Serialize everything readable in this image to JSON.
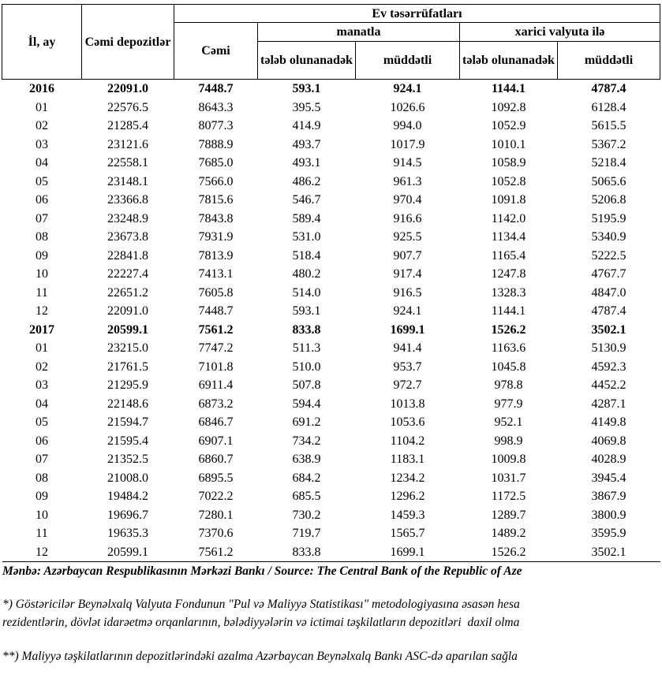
{
  "header": {
    "period": "İl, ay",
    "total_deposits": "Cəmi depozitlər",
    "households": "Ev təsərrüfatları",
    "total": "Cəmi",
    "manat": "manatla",
    "foreign": "xarici valyuta ilə",
    "demand": "tələb olunanadək",
    "term": "müddətli"
  },
  "rows": [
    {
      "label": "2016",
      "bold": true,
      "values": [
        "22091.0",
        "7448.7",
        "593.1",
        "924.1",
        "1144.1",
        "4787.4"
      ]
    },
    {
      "label": "01",
      "values": [
        "22576.5",
        "8643.3",
        "395.5",
        "1026.6",
        "1092.8",
        "6128.4"
      ]
    },
    {
      "label": "02",
      "values": [
        "21285.4",
        "8077.3",
        "414.9",
        "994.0",
        "1052.9",
        "5615.5"
      ]
    },
    {
      "label": "03",
      "values": [
        "23121.6",
        "7888.9",
        "493.7",
        "1017.9",
        "1010.1",
        "5367.2"
      ]
    },
    {
      "label": "04",
      "values": [
        "22558.1",
        "7685.0",
        "493.1",
        "914.5",
        "1058.9",
        "5218.4"
      ]
    },
    {
      "label": "05",
      "values": [
        "23148.1",
        "7566.0",
        "486.2",
        "961.3",
        "1052.8",
        "5065.6"
      ]
    },
    {
      "label": "06",
      "values": [
        "23366.8",
        "7815.6",
        "546.7",
        "970.4",
        "1091.8",
        "5206.8"
      ]
    },
    {
      "label": "07",
      "values": [
        "23248.9",
        "7843.8",
        "589.4",
        "916.6",
        "1142.0",
        "5195.9"
      ]
    },
    {
      "label": "08",
      "values": [
        "23673.8",
        "7931.9",
        "531.0",
        "925.5",
        "1134.4",
        "5340.9"
      ]
    },
    {
      "label": "09",
      "values": [
        "22841.8",
        "7813.9",
        "518.4",
        "907.7",
        "1165.4",
        "5222.5"
      ]
    },
    {
      "label": "10",
      "values": [
        "22227.4",
        "7413.1",
        "480.2",
        "917.4",
        "1247.8",
        "4767.7"
      ]
    },
    {
      "label": "11",
      "values": [
        "22651.2",
        "7605.8",
        "514.0",
        "916.5",
        "1328.3",
        "4847.0"
      ]
    },
    {
      "label": "12",
      "values": [
        "22091.0",
        "7448.7",
        "593.1",
        "924.1",
        "1144.1",
        "4787.4"
      ]
    },
    {
      "label": "2017",
      "bold": true,
      "values": [
        "20599.1",
        "7561.2",
        "833.8",
        "1699.1",
        "1526.2",
        "3502.1"
      ]
    },
    {
      "label": "01",
      "values": [
        "23215.0",
        "7747.2",
        "511.3",
        "941.4",
        "1163.6",
        "5130.9"
      ]
    },
    {
      "label": "02",
      "values": [
        "21761.5",
        "7101.8",
        "510.0",
        "953.7",
        "1045.8",
        "4592.3"
      ]
    },
    {
      "label": "03",
      "values": [
        "21295.9",
        "6911.4",
        "507.8",
        "972.7",
        "978.8",
        "4452.2"
      ]
    },
    {
      "label": "04",
      "values": [
        "22148.6",
        "6873.2",
        "594.4",
        "1013.8",
        "977.9",
        "4287.1"
      ]
    },
    {
      "label": "05",
      "values": [
        "21594.7",
        "6846.7",
        "691.2",
        "1053.6",
        "952.1",
        "4149.8"
      ]
    },
    {
      "label": "06",
      "values": [
        "21595.4",
        "6907.1",
        "734.2",
        "1104.2",
        "998.9",
        "4069.8"
      ]
    },
    {
      "label": "07",
      "values": [
        "21352.5",
        "6860.7",
        "638.9",
        "1183.1",
        "1009.8",
        "4028.9"
      ]
    },
    {
      "label": "08",
      "values": [
        "21008.0",
        "6895.5",
        "684.2",
        "1234.2",
        "1031.7",
        "3945.4"
      ]
    },
    {
      "label": "09",
      "values": [
        "19484.2",
        "7022.2",
        "685.5",
        "1296.2",
        "1172.5",
        "3867.9"
      ]
    },
    {
      "label": "10",
      "values": [
        "19696.7",
        "7280.1",
        "730.2",
        "1459.3",
        "1289.7",
        "3800.9"
      ]
    },
    {
      "label": "11",
      "values": [
        "19635.3",
        "7370.6",
        "719.7",
        "1565.7",
        "1489.2",
        "3595.9"
      ]
    },
    {
      "label": "12",
      "values": [
        "20599.1",
        "7561.2",
        "833.8",
        "1699.1",
        "1526.2",
        "3502.1"
      ]
    }
  ],
  "footer": {
    "source": "Mənbə: Azərbaycan Respublikasının Mərkəzi Bankı / Source: The Central Bank of the Republic of Aze",
    "note1a": "*) Göstəricilər Beynəlxalq Valyuta Fondunun \"Pul və Maliyyə Statistikası\" metodologiyasına əsasən hesa",
    "note1b": "rezidentlərin, dövlət idarəetmə orqanlarının, bələdiyyələrin və ictimai təşkilatların depozitləri  daxil olma",
    "note2": "**) Maliyyə təşkilatlarının depozitlərindəki azalma Azərbaycan Beynəlxalq Bankı ASC-də aparılan sağla"
  }
}
